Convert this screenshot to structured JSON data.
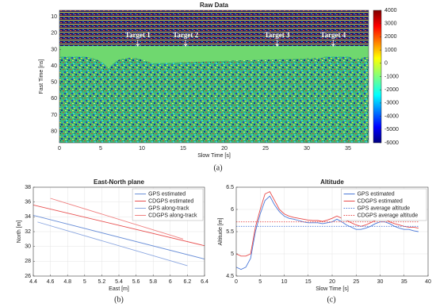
{
  "chart_data": [
    {
      "type": "heatmap",
      "title": "Raw Data",
      "xlabel": "Slow Time [s]",
      "ylabel": "Fast Time [ns]",
      "caption": "(a)",
      "xlim": [
        0,
        37.5
      ],
      "xticks": [
        0,
        5,
        10,
        15,
        20,
        25,
        30,
        35
      ],
      "ylim": [
        6,
        87
      ],
      "yticks": [
        10,
        20,
        30,
        40,
        50,
        60,
        70,
        80
      ],
      "yreverse": true,
      "grid": false,
      "colormap": "jet",
      "clim": [
        -6000,
        4000
      ],
      "cticks": [
        4000,
        3000,
        2000,
        1000,
        0,
        -1000,
        -2000,
        -3000,
        -4000,
        -5000,
        -6000
      ],
      "annotations": [
        {
          "text": "Target 1",
          "x": 9.5,
          "y": 25
        },
        {
          "text": "Target 2",
          "x": 15.3,
          "y": 25
        },
        {
          "text": "Target 3",
          "x": 26.4,
          "y": 25
        },
        {
          "text": "Target 4",
          "x": 33.2,
          "y": 25
        }
      ]
    },
    {
      "type": "line",
      "title": "East-North plane",
      "xlabel": "East [m]",
      "ylabel": "North [m]",
      "caption": "(b)",
      "xlim": [
        4.4,
        6.4
      ],
      "xticks": [
        4.4,
        4.6,
        4.8,
        5,
        5.2,
        5.4,
        5.6,
        5.8,
        6,
        6.2,
        6.4
      ],
      "ylim": [
        26,
        38
      ],
      "yticks": [
        26,
        28,
        30,
        32,
        34,
        36,
        38
      ],
      "grid": true,
      "legend": "upper right",
      "series": [
        {
          "name": "GPS estimated",
          "color": "#6a8fd8",
          "linestyle": "solid",
          "x": [
            4.4,
            6.4
          ],
          "values": [
            34.2,
            28.3
          ]
        },
        {
          "name": "CDGPS estimated",
          "color": "#e85050",
          "linestyle": "solid",
          "x": [
            4.4,
            6.4
          ],
          "values": [
            35.6,
            30.1
          ]
        },
        {
          "name": "GPS along-track",
          "color": "#8aa6e0",
          "linestyle": "solid",
          "x": [
            4.45,
            6.2
          ],
          "values": [
            33.3,
            27.4
          ]
        },
        {
          "name": "CDGPS along-track",
          "color": "#f08080",
          "linestyle": "solid",
          "x": [
            4.6,
            6.15
          ],
          "values": [
            36.5,
            31.0
          ]
        }
      ]
    },
    {
      "type": "line",
      "title": "Altitude",
      "xlabel": "Slow Time [s]",
      "ylabel": "Altitude [m]",
      "caption": "(c)",
      "xlim": [
        0,
        40
      ],
      "xticks": [
        0,
        5,
        10,
        15,
        20,
        25,
        30,
        35,
        40
      ],
      "ylim": [
        4.5,
        6.5
      ],
      "yticks": [
        4.5,
        5,
        5.5,
        6,
        6.5
      ],
      "grid": true,
      "legend": "upper right",
      "series": [
        {
          "name": "GPS estimated",
          "color": "#4a78d8",
          "linestyle": "solid",
          "x": [
            0,
            1,
            2,
            3,
            4,
            5,
            6,
            7,
            8,
            9,
            10,
            11,
            12,
            13,
            14,
            15,
            16,
            17,
            18,
            19,
            20,
            21,
            22,
            23,
            24,
            25,
            26,
            27,
            28,
            29,
            30,
            31,
            32,
            33,
            34,
            35,
            36,
            37,
            38
          ],
          "values": [
            4.7,
            4.65,
            4.7,
            4.9,
            5.5,
            5.9,
            6.2,
            6.3,
            6.1,
            5.95,
            5.85,
            5.8,
            5.78,
            5.75,
            5.72,
            5.7,
            5.7,
            5.7,
            5.68,
            5.7,
            5.72,
            5.78,
            5.72,
            5.65,
            5.6,
            5.55,
            5.55,
            5.58,
            5.62,
            5.68,
            5.72,
            5.72,
            5.68,
            5.62,
            5.58,
            5.55,
            5.55,
            5.52,
            5.5
          ]
        },
        {
          "name": "CDGPS estimated",
          "color": "#e84a4a",
          "linestyle": "solid",
          "x": [
            0,
            1,
            2,
            3,
            4,
            5,
            6,
            7,
            8,
            9,
            10,
            11,
            12,
            13,
            14,
            15,
            16,
            17,
            18,
            19,
            20,
            21,
            22,
            23,
            24,
            25,
            26,
            27,
            28,
            29,
            30,
            31,
            32,
            33,
            34,
            35,
            36,
            37,
            38
          ],
          "values": [
            5.0,
            4.95,
            4.95,
            5.0,
            5.6,
            6.0,
            6.35,
            6.4,
            6.2,
            6.0,
            5.9,
            5.85,
            5.82,
            5.8,
            5.78,
            5.76,
            5.75,
            5.75,
            5.73,
            5.76,
            5.8,
            5.85,
            5.8,
            5.75,
            5.7,
            5.65,
            5.62,
            5.65,
            5.7,
            5.75,
            5.8,
            5.78,
            5.72,
            5.68,
            5.65,
            5.62,
            5.6,
            5.6,
            5.58
          ]
        },
        {
          "name": "GPS average altitude",
          "color": "#4a78d8",
          "linestyle": "dotted",
          "x": [
            0,
            38
          ],
          "values": [
            5.62,
            5.62
          ]
        },
        {
          "name": "CDGPS average altitude",
          "color": "#e84a4a",
          "linestyle": "dotted",
          "x": [
            0,
            38
          ],
          "values": [
            5.72,
            5.72
          ]
        }
      ]
    }
  ]
}
